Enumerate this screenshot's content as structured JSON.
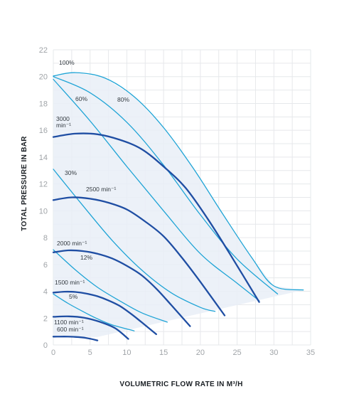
{
  "chart_data": {
    "type": "line",
    "xlabel": "VOLUMETRIC FLOW RATE IN M³/H",
    "ylabel": "TOTAL PRESSURE IN BAR",
    "xlim": [
      0,
      35
    ],
    "ylim": [
      0,
      22
    ],
    "xticks": [
      "0",
      "5",
      "10",
      "15",
      "20",
      "25",
      "30",
      "35"
    ],
    "yticks": [
      "0",
      "2",
      "4",
      "6",
      "8",
      "10",
      "12",
      "14",
      "16",
      "18",
      "20",
      "22"
    ],
    "grid": true,
    "colors": {
      "speed": "#1f4ea3",
      "efficiency": "#1fa4d6",
      "envelope": "#e9eef7",
      "grid": "#e6e8eb"
    },
    "speed_curves": [
      {
        "label": "3000 min⁻¹",
        "x": [
          0,
          3,
          6,
          9,
          12,
          15,
          18,
          21,
          24,
          28
        ],
        "y": [
          15.5,
          15.75,
          15.7,
          15.3,
          14.6,
          13.3,
          11.7,
          9.4,
          6.8,
          3.2
        ]
      },
      {
        "label": "2500 min⁻¹",
        "x": [
          0,
          2.5,
          5,
          7.5,
          10,
          12.5,
          15,
          17.5,
          20,
          23.3
        ],
        "y": [
          10.8,
          11.0,
          10.9,
          10.6,
          10.1,
          9.2,
          8.1,
          6.5,
          4.7,
          2.2
        ]
      },
      {
        "label": "2000 min⁻¹",
        "x": [
          0,
          2,
          4,
          6,
          8,
          10,
          12,
          14,
          16,
          18.6
        ],
        "y": [
          6.9,
          7.05,
          7.0,
          6.8,
          6.45,
          5.9,
          5.2,
          4.2,
          3.0,
          1.4
        ]
      },
      {
        "label": "1500 min⁻¹",
        "x": [
          0,
          1.5,
          3,
          4.5,
          6,
          7.5,
          9,
          10.5,
          12,
          14
        ],
        "y": [
          3.9,
          3.97,
          3.95,
          3.83,
          3.63,
          3.32,
          2.92,
          2.35,
          1.7,
          0.8
        ]
      },
      {
        "label": "1100 min⁻¹",
        "x": [
          0,
          2.1,
          4.2,
          6.3,
          8.4,
          10.2
        ],
        "y": [
          2.1,
          2.13,
          2.03,
          1.73,
          1.25,
          0.45
        ]
      },
      {
        "label": "600 min⁻¹",
        "x": [
          0,
          1.5,
          3,
          4.5,
          6
        ],
        "y": [
          0.62,
          0.63,
          0.6,
          0.52,
          0.34
        ]
      }
    ],
    "efficiency_curves": [
      {
        "label": "100%",
        "x": [
          0,
          3,
          7,
          11,
          15,
          19,
          23,
          27,
          30,
          34
        ],
        "y": [
          20.05,
          20.3,
          19.9,
          18.5,
          16.2,
          13.2,
          9.8,
          6.5,
          4.4,
          4.1
        ]
      },
      {
        "label": "80%",
        "x": [
          0,
          5,
          10,
          15,
          20,
          25,
          30.5
        ],
        "y": [
          20.0,
          18.8,
          16.6,
          13.4,
          9.7,
          6.4,
          3.8
        ]
      },
      {
        "label": "60%",
        "x": [
          0,
          5,
          10,
          15,
          20,
          25,
          28
        ],
        "y": [
          19.8,
          16.7,
          13.3,
          10.0,
          6.8,
          4.6,
          3.3
        ]
      },
      {
        "label": "30%",
        "x": [
          0,
          4,
          8,
          12,
          16,
          20,
          22
        ],
        "y": [
          13.1,
          10.4,
          7.8,
          5.6,
          3.9,
          2.8,
          2.5
        ]
      },
      {
        "label": "12%",
        "x": [
          0,
          3,
          6,
          9,
          12,
          15.5
        ],
        "y": [
          7.1,
          5.6,
          4.3,
          3.3,
          2.4,
          1.7
        ]
      },
      {
        "label": "5%",
        "x": [
          0,
          2,
          4,
          6,
          8,
          11
        ],
        "y": [
          3.8,
          3.1,
          2.5,
          1.95,
          1.5,
          1.05
        ]
      }
    ],
    "envelope": {
      "x": [
        0,
        3,
        7,
        11,
        15,
        19,
        23,
        27,
        30,
        34,
        6,
        0
      ],
      "y": [
        20.05,
        20.3,
        19.9,
        18.5,
        16.2,
        13.2,
        9.8,
        6.5,
        4.4,
        4.1,
        0.6,
        0.6
      ]
    }
  }
}
